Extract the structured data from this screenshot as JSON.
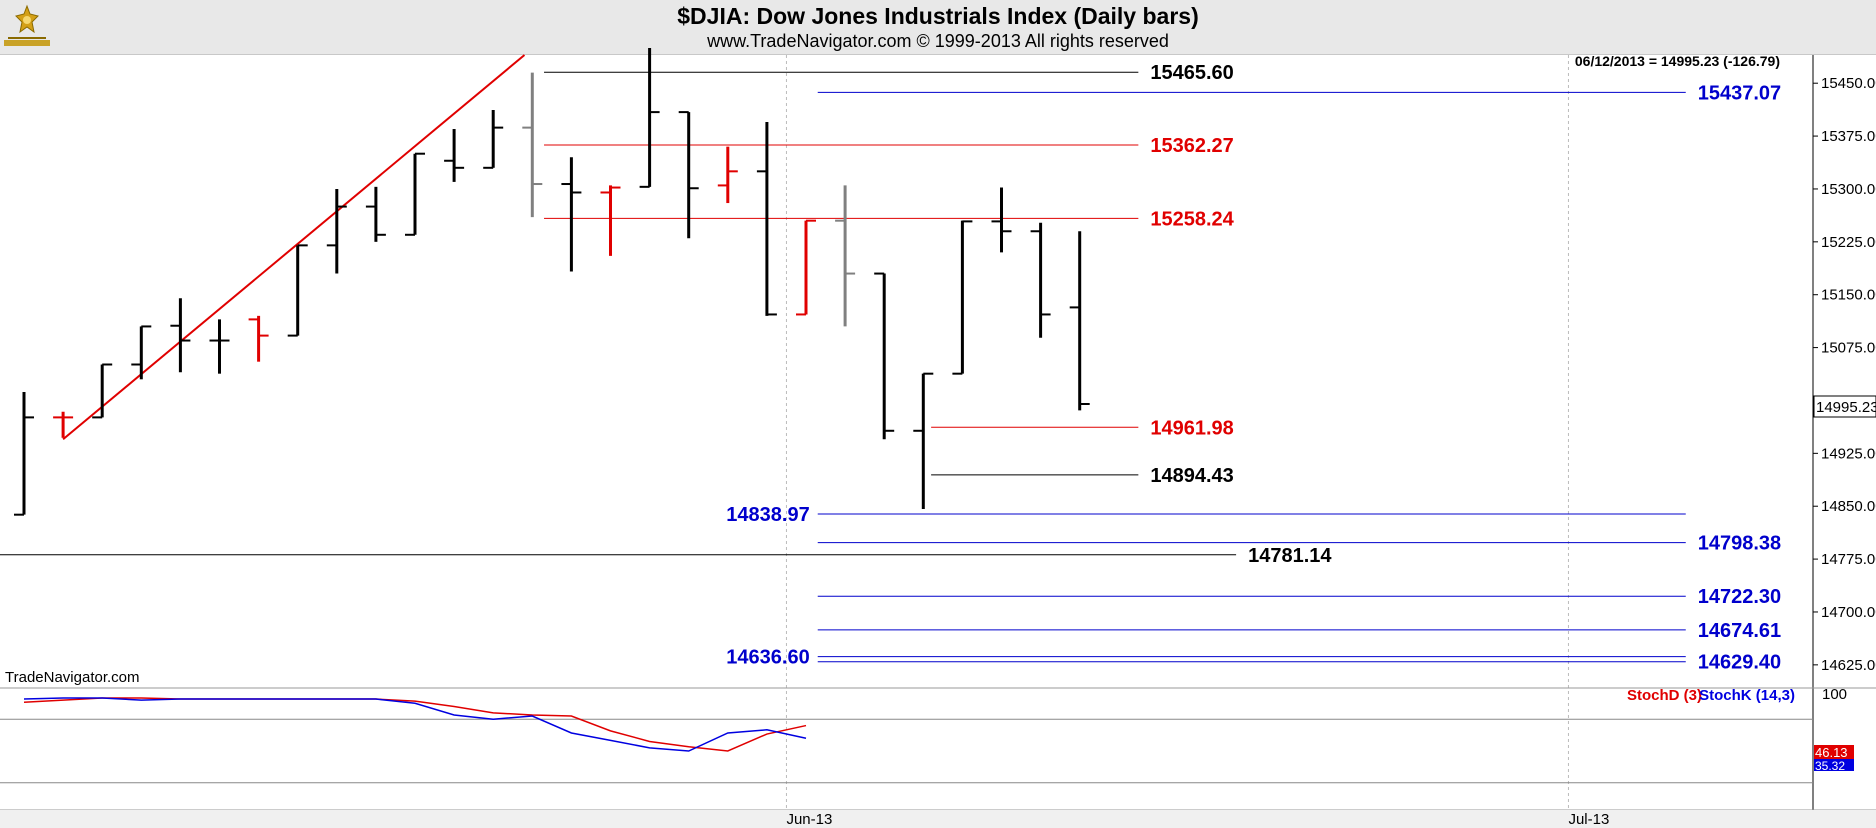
{
  "header": {
    "title": "$DJIA:  Dow Jones Industrials Index  (Daily bars)",
    "subtitle": "www.TradeNavigator.com © 1999-2013 All rights reserved"
  },
  "last_quote": "06/12/2013 = 14995.23 (-126.79)",
  "current_price_label": "14995.23",
  "watermark": "TradeNavigator.com",
  "indicator": {
    "stochd_label": "StochD (3)",
    "stochk_label": "StochK (14,3)",
    "top_label": "100",
    "stochd_value_label": "46.13",
    "stochk_value_label": "35.32",
    "stochd_color": "#e00000",
    "stochk_color": "#0000e0",
    "stochd": [
      96,
      98,
      100,
      100,
      99,
      99,
      99,
      99,
      99,
      99,
      97,
      92,
      86,
      84,
      83,
      69,
      59,
      54,
      50,
      66,
      74
    ],
    "stochk": [
      99,
      100,
      100,
      98,
      99,
      99,
      99,
      99,
      99,
      99,
      95,
      84,
      80,
      83,
      67,
      60,
      53,
      50,
      67,
      70,
      62
    ]
  },
  "colors": {
    "up_bar": "#000000",
    "down_bar": "#e00000",
    "neutral_bar": "#808080",
    "trendline": "#e00000",
    "level_black": "#000000",
    "level_red": "#e00000",
    "level_blue": "#0000cc"
  },
  "chart_data": {
    "type": "ohlc",
    "ylim": [
      14595,
      15490
    ],
    "y_ticks": [
      "15450.00",
      "15375.00",
      "15300.00",
      "15225.00",
      "15150.00",
      "15075.00",
      "15000.00",
      "14925.00",
      "14850.00",
      "14775.00",
      "14700.00",
      "14625.00"
    ],
    "x_tick_labels": [
      {
        "label": "Jun-13",
        "bar": 19.5
      },
      {
        "label": "Jul-13",
        "bar": 39.5
      }
    ],
    "bars": [
      {
        "o": 14838,
        "h": 15012,
        "l": 14838,
        "c": 14976,
        "color": "up"
      },
      {
        "o": 14976,
        "h": 14984,
        "l": 14947,
        "c": 14976,
        "color": "down"
      },
      {
        "o": 14976,
        "h": 15051,
        "l": 14976,
        "c": 15051,
        "color": "up"
      },
      {
        "o": 15051,
        "h": 15105,
        "l": 15030,
        "c": 15105,
        "color": "up"
      },
      {
        "o": 15106,
        "h": 15145,
        "l": 15040,
        "c": 15085,
        "color": "up"
      },
      {
        "o": 15085,
        "h": 15115,
        "l": 15038,
        "c": 15085,
        "color": "up"
      },
      {
        "o": 15115,
        "h": 15120,
        "l": 15055,
        "c": 15092,
        "color": "down"
      },
      {
        "o": 15092,
        "h": 15220,
        "l": 15092,
        "c": 15220,
        "color": "up"
      },
      {
        "o": 15220,
        "h": 15300,
        "l": 15180,
        "c": 15275,
        "color": "up"
      },
      {
        "o": 15275,
        "h": 15303,
        "l": 15225,
        "c": 15235,
        "color": "up"
      },
      {
        "o": 15235,
        "h": 15350,
        "l": 15235,
        "c": 15350,
        "color": "up"
      },
      {
        "o": 15340,
        "h": 15385,
        "l": 15310,
        "c": 15330,
        "color": "up"
      },
      {
        "o": 15330,
        "h": 15412,
        "l": 15330,
        "c": 15387,
        "color": "up"
      },
      {
        "o": 15387,
        "h": 15465,
        "l": 15260,
        "c": 15307,
        "color": "neutral"
      },
      {
        "o": 15307,
        "h": 15345,
        "l": 15183,
        "c": 15295,
        "color": "up"
      },
      {
        "o": 15295,
        "h": 15305,
        "l": 15205,
        "c": 15302,
        "color": "down"
      },
      {
        "o": 15303,
        "h": 15500,
        "l": 15303,
        "c": 15409,
        "color": "up"
      },
      {
        "o": 15409,
        "h": 15409,
        "l": 15230,
        "c": 15301,
        "color": "up"
      },
      {
        "o": 15305,
        "h": 15360,
        "l": 15280,
        "c": 15325,
        "color": "down"
      },
      {
        "o": 15325,
        "h": 15395,
        "l": 15120,
        "c": 15122,
        "color": "up"
      },
      {
        "o": 15122,
        "h": 15255,
        "l": 15122,
        "c": 15255,
        "color": "down"
      },
      {
        "o": 15255,
        "h": 15305,
        "l": 15105,
        "c": 15180,
        "color": "neutral"
      },
      {
        "o": 15180,
        "h": 15180,
        "l": 14945,
        "c": 14957,
        "color": "up"
      },
      {
        "o": 14957,
        "h": 15038,
        "l": 14846,
        "c": 15038,
        "color": "up"
      },
      {
        "o": 15038,
        "h": 15255,
        "l": 15038,
        "c": 15254,
        "color": "up"
      },
      {
        "o": 15254,
        "h": 15302,
        "l": 15210,
        "c": 15240,
        "color": "up"
      },
      {
        "o": 15240,
        "h": 15252,
        "l": 15089,
        "c": 15122,
        "color": "up"
      },
      {
        "o": 15132,
        "h": 15240,
        "l": 14986,
        "c": 14995,
        "color": "up"
      }
    ],
    "trendline": {
      "from": {
        "bar": 1,
        "value": 14945
      },
      "to": {
        "bar": 12.8,
        "value": 15490
      }
    },
    "levels": [
      {
        "value": 15465.6,
        "label": "15465.60",
        "color": "black",
        "from_bar": 13.3,
        "to_bar": 28.5
      },
      {
        "value": 15362.27,
        "label": "15362.27",
        "color": "red",
        "from_bar": 13.3,
        "to_bar": 28.5
      },
      {
        "value": 15258.24,
        "label": "15258.24",
        "color": "red",
        "from_bar": 13.3,
        "to_bar": 28.5
      },
      {
        "value": 14961.98,
        "label": "14961.98",
        "color": "red",
        "from_bar": 23.2,
        "to_bar": 28.5
      },
      {
        "value": 14894.43,
        "label": "14894.43",
        "color": "black",
        "from_bar": 23.2,
        "to_bar": 28.5
      },
      {
        "value": 15437.07,
        "label": "15437.07",
        "color": "blue",
        "from_bar": 20.3,
        "to_bar": 42.5
      },
      {
        "value": 14838.97,
        "label": "14838.97",
        "color": "blue",
        "from_bar": 20.3,
        "to_bar": 42.5,
        "label_side": "left"
      },
      {
        "value": 14798.38,
        "label": "14798.38",
        "color": "blue",
        "from_bar": 20.3,
        "to_bar": 42.5
      },
      {
        "value": 14781.14,
        "label": "14781.14",
        "color": "black",
        "from_bar": -1,
        "to_bar": 31
      },
      {
        "value": 14722.3,
        "label": "14722.30",
        "color": "blue",
        "from_bar": 20.3,
        "to_bar": 42.5
      },
      {
        "value": 14674.61,
        "label": "14674.61",
        "color": "blue",
        "from_bar": 20.3,
        "to_bar": 42.5
      },
      {
        "value": 14636.6,
        "label": "14636.60",
        "color": "blue",
        "from_bar": 20.3,
        "to_bar": 42.5,
        "label_side": "left"
      },
      {
        "value": 14629.4,
        "label": "14629.40",
        "color": "blue",
        "from_bar": 20.3,
        "to_bar": 42.5
      }
    ]
  }
}
